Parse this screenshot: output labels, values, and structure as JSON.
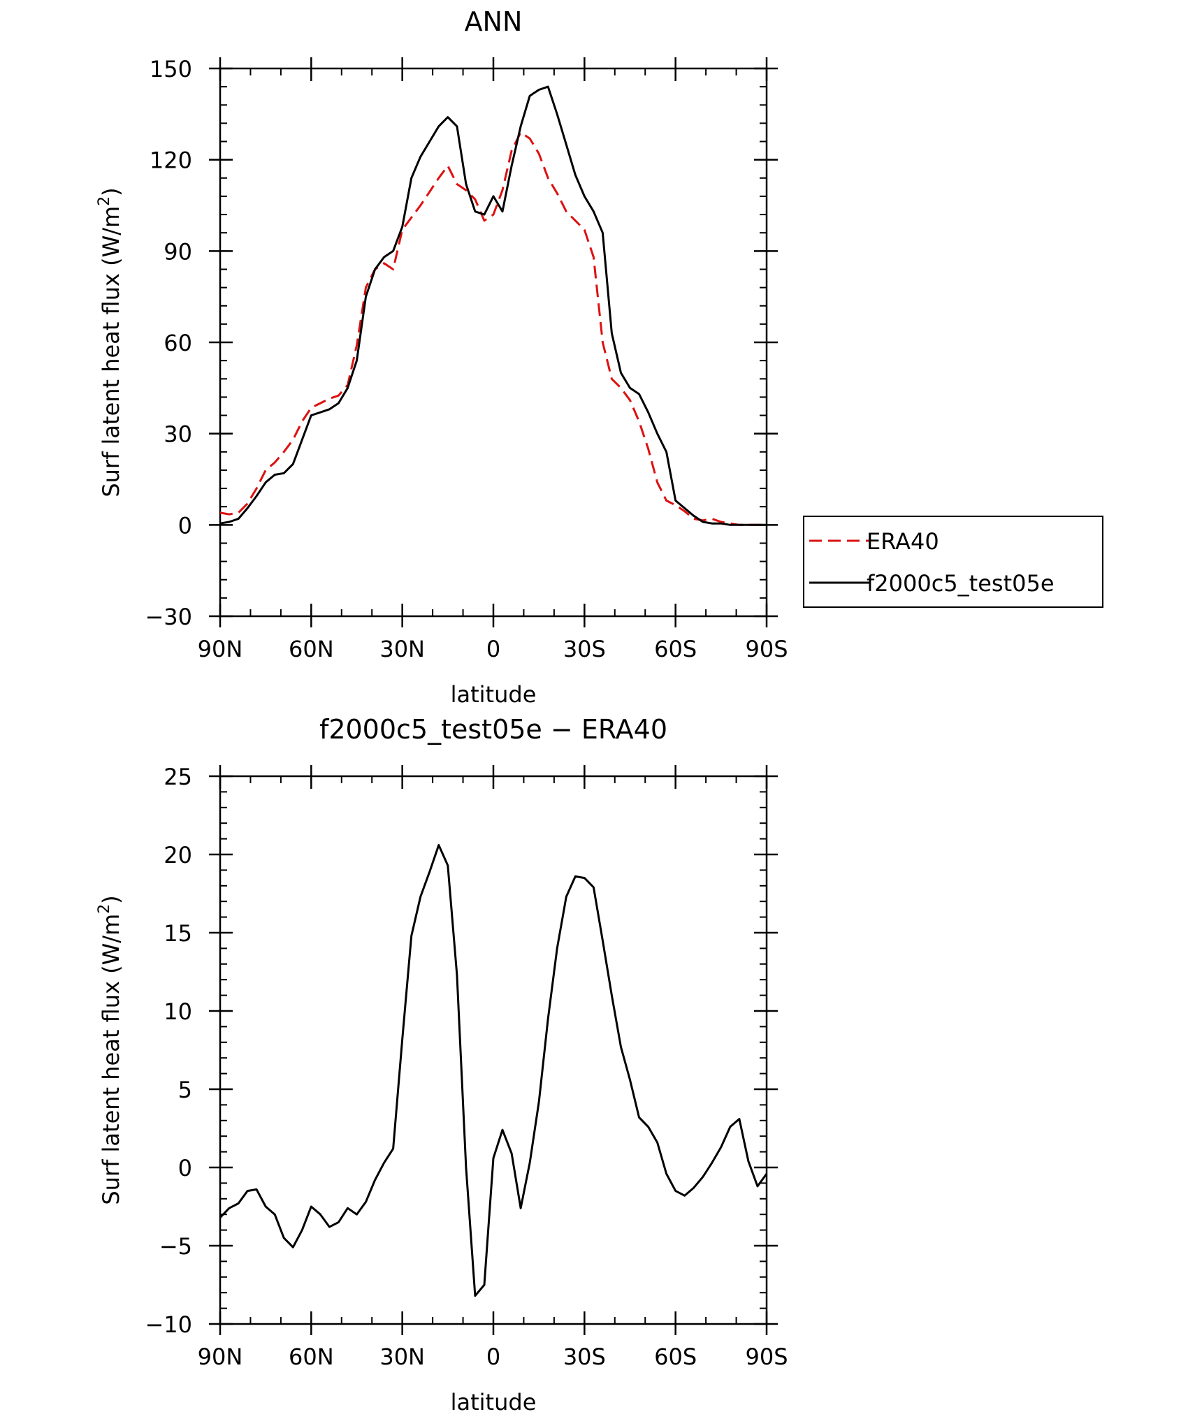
{
  "chart_data": [
    {
      "type": "line",
      "title": "ANN",
      "xlabel": "latitude",
      "ylabel": "Surf latent heat flux (W/m²)",
      "ylabel_text": "Surf latent heat flux (W/m",
      "ylabel_sup": "2",
      "ylabel_close": ")",
      "xlim": [
        90,
        -90
      ],
      "ylim": [
        -30,
        150
      ],
      "xticks": [
        90,
        60,
        30,
        0,
        -30,
        -60,
        -90
      ],
      "xtick_labels": [
        "90N",
        "60N",
        "30N",
        "0",
        "30S",
        "60S",
        "90S"
      ],
      "yticks": [
        -30,
        0,
        30,
        60,
        90,
        120,
        150
      ],
      "ytick_labels": [
        "−30",
        "0",
        "30",
        "60",
        "90",
        "120",
        "150"
      ],
      "legend": "right",
      "series": [
        {
          "name": "ERA40",
          "color": "#dd1111",
          "dash": "dashed",
          "x": [
            90,
            87,
            84,
            81,
            78,
            75,
            72,
            69,
            66,
            63,
            60,
            57,
            54,
            51,
            48,
            45,
            42,
            39,
            36,
            33,
            30,
            27,
            24,
            21,
            18,
            15,
            12,
            9,
            6,
            3,
            0,
            -3,
            -6,
            -9,
            -12,
            -15,
            -18,
            -21,
            -24,
            -27,
            -30,
            -33,
            -36,
            -39,
            -42,
            -45,
            -48,
            -51,
            -54,
            -57,
            -60,
            -63,
            -66,
            -69,
            -72,
            -75,
            -78,
            -81,
            -84,
            -87,
            -90
          ],
          "y": [
            4,
            3.5,
            4,
            7,
            12,
            18,
            20.5,
            24,
            28,
            34,
            38.5,
            40,
            41.5,
            42.5,
            46,
            59,
            78,
            84,
            86,
            84,
            97,
            101,
            105,
            109.5,
            114,
            118,
            112,
            110,
            107,
            100,
            102,
            110,
            123,
            129,
            127,
            122,
            114,
            109,
            103,
            100,
            97,
            88,
            60,
            48,
            45,
            41,
            34,
            25,
            14,
            8,
            6.5,
            4.5,
            2,
            1.5,
            2,
            1,
            0.5,
            0,
            0,
            0,
            0
          ]
        },
        {
          "name": "f2000c5_test05e",
          "color": "#000000",
          "dash": "solid",
          "x": [
            90,
            87,
            84,
            81,
            78,
            75,
            72,
            69,
            66,
            63,
            60,
            57,
            54,
            51,
            48,
            45,
            42,
            39,
            36,
            33,
            30,
            27,
            24,
            21,
            18,
            15,
            12,
            9,
            6,
            3,
            0,
            -3,
            -6,
            -9,
            -12,
            -15,
            -18,
            -21,
            -24,
            -27,
            -30,
            -33,
            -36,
            -39,
            -42,
            -45,
            -48,
            -51,
            -54,
            -57,
            -60,
            -63,
            -66,
            -69,
            -72,
            -75,
            -78,
            -81,
            -84,
            -87,
            -90
          ],
          "y": [
            0.5,
            1,
            2,
            5.5,
            9.5,
            14,
            16.5,
            17,
            20,
            28,
            36,
            37,
            38,
            40,
            45,
            54,
            75,
            84,
            88,
            90,
            98,
            114,
            121,
            126,
            131,
            134,
            131,
            112,
            103,
            102,
            108,
            103,
            118,
            131,
            141,
            143,
            144,
            135,
            125,
            115,
            108,
            103,
            96,
            63,
            50,
            45,
            43,
            37,
            30,
            24,
            8,
            5.5,
            3,
            1,
            0.5,
            0.5,
            0,
            0,
            0,
            0,
            0
          ]
        }
      ]
    },
    {
      "type": "line",
      "title": "f2000c5_test05e − ERA40",
      "xlabel": "latitude",
      "ylabel": "Surf latent heat flux (W/m²)",
      "ylabel_text": "Surf latent heat flux (W/m",
      "ylabel_sup": "2",
      "ylabel_close": ")",
      "xlim": [
        90,
        -90
      ],
      "ylim": [
        -10,
        25
      ],
      "xticks": [
        90,
        60,
        30,
        0,
        -30,
        -60,
        -90
      ],
      "xtick_labels": [
        "90N",
        "60N",
        "30N",
        "0",
        "30S",
        "60S",
        "90S"
      ],
      "yticks": [
        -10,
        -5,
        0,
        5,
        10,
        15,
        20,
        25
      ],
      "ytick_labels": [
        "−10",
        "−5",
        "0",
        "5",
        "10",
        "15",
        "20",
        "25"
      ],
      "series": [
        {
          "color": "#000000",
          "dash": "solid",
          "x": [
            90,
            87,
            84,
            81,
            78,
            75,
            72,
            69,
            66,
            63,
            60,
            57,
            54,
            51,
            48,
            45,
            42,
            39,
            36,
            33,
            30,
            27,
            24,
            21,
            18,
            15,
            12,
            9,
            6,
            3,
            0,
            -3,
            -6,
            -9,
            -12,
            -15,
            -18,
            -21,
            -24,
            -27,
            -30,
            -33,
            -36,
            -39,
            -42,
            -45,
            -48,
            -51,
            -54,
            -57,
            -60,
            -63,
            -66,
            -69,
            -72,
            -75,
            -78,
            -81,
            -84,
            -87,
            -90
          ],
          "y": [
            -3.2,
            -2.6,
            -2.3,
            -1.5,
            -1.4,
            -2.5,
            -3.0,
            -4.5,
            -5.1,
            -4.0,
            -2.5,
            -3.0,
            -3.8,
            -3.5,
            -2.6,
            -3.0,
            -2.2,
            -0.8,
            0.3,
            1.2,
            8.2,
            14.8,
            17.3,
            18.9,
            20.6,
            19.3,
            12.3,
            0.0,
            -8.2,
            -7.5,
            0.6,
            2.4,
            0.9,
            -2.6,
            0.3,
            4.2,
            9.5,
            14.0,
            17.3,
            18.6,
            18.5,
            17.9,
            14.5,
            11.0,
            7.7,
            5.6,
            3.2,
            2.6,
            1.6,
            -0.4,
            -1.5,
            -1.8,
            -1.3,
            -0.6,
            0.3,
            1.3,
            2.6,
            3.1,
            0.4,
            -1.2,
            -0.4
          ]
        }
      ]
    }
  ]
}
